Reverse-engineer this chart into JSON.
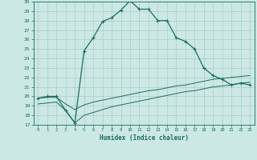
{
  "xlabel": "Humidex (Indice chaleur)",
  "bg_color": "#cce8e4",
  "grid_color": "#aaccca",
  "line_color": "#1a6b60",
  "xlim": [
    -0.5,
    23.5
  ],
  "ylim": [
    17,
    30
  ],
  "yticks": [
    17,
    18,
    19,
    20,
    21,
    22,
    23,
    24,
    25,
    26,
    27,
    28,
    29,
    30
  ],
  "xticks": [
    0,
    1,
    2,
    3,
    4,
    5,
    6,
    7,
    8,
    9,
    10,
    11,
    12,
    13,
    14,
    15,
    16,
    17,
    18,
    19,
    20,
    21,
    22,
    23
  ],
  "series1_x": [
    0,
    1,
    2,
    3,
    4,
    5,
    6,
    7,
    8,
    9,
    10,
    11,
    12,
    13,
    14,
    15,
    16,
    17,
    18,
    19,
    20,
    21,
    22,
    23
  ],
  "series1_y": [
    19.8,
    20.0,
    20.0,
    18.5,
    17.2,
    24.8,
    26.2,
    27.9,
    28.3,
    29.1,
    30.1,
    29.2,
    29.2,
    28.0,
    28.0,
    26.2,
    25.8,
    25.0,
    23.0,
    22.2,
    21.8,
    21.2,
    21.4,
    21.2
  ],
  "series2_x": [
    0,
    1,
    2,
    3,
    4,
    5,
    6,
    7,
    8,
    9,
    10,
    11,
    12,
    13,
    14,
    15,
    16,
    17,
    18,
    19,
    20,
    21,
    22,
    23
  ],
  "series2_y": [
    19.8,
    19.9,
    19.9,
    19.2,
    18.6,
    19.1,
    19.4,
    19.6,
    19.8,
    20.0,
    20.2,
    20.4,
    20.6,
    20.7,
    20.9,
    21.1,
    21.2,
    21.4,
    21.6,
    21.8,
    21.9,
    22.0,
    22.1,
    22.2
  ],
  "series3_x": [
    0,
    1,
    2,
    3,
    4,
    5,
    6,
    7,
    8,
    9,
    10,
    11,
    12,
    13,
    14,
    15,
    16,
    17,
    18,
    19,
    20,
    21,
    22,
    23
  ],
  "series3_y": [
    19.2,
    19.3,
    19.4,
    18.5,
    17.2,
    18.0,
    18.3,
    18.6,
    18.9,
    19.1,
    19.3,
    19.5,
    19.7,
    19.9,
    20.1,
    20.3,
    20.5,
    20.6,
    20.8,
    21.0,
    21.1,
    21.2,
    21.4,
    21.5
  ]
}
